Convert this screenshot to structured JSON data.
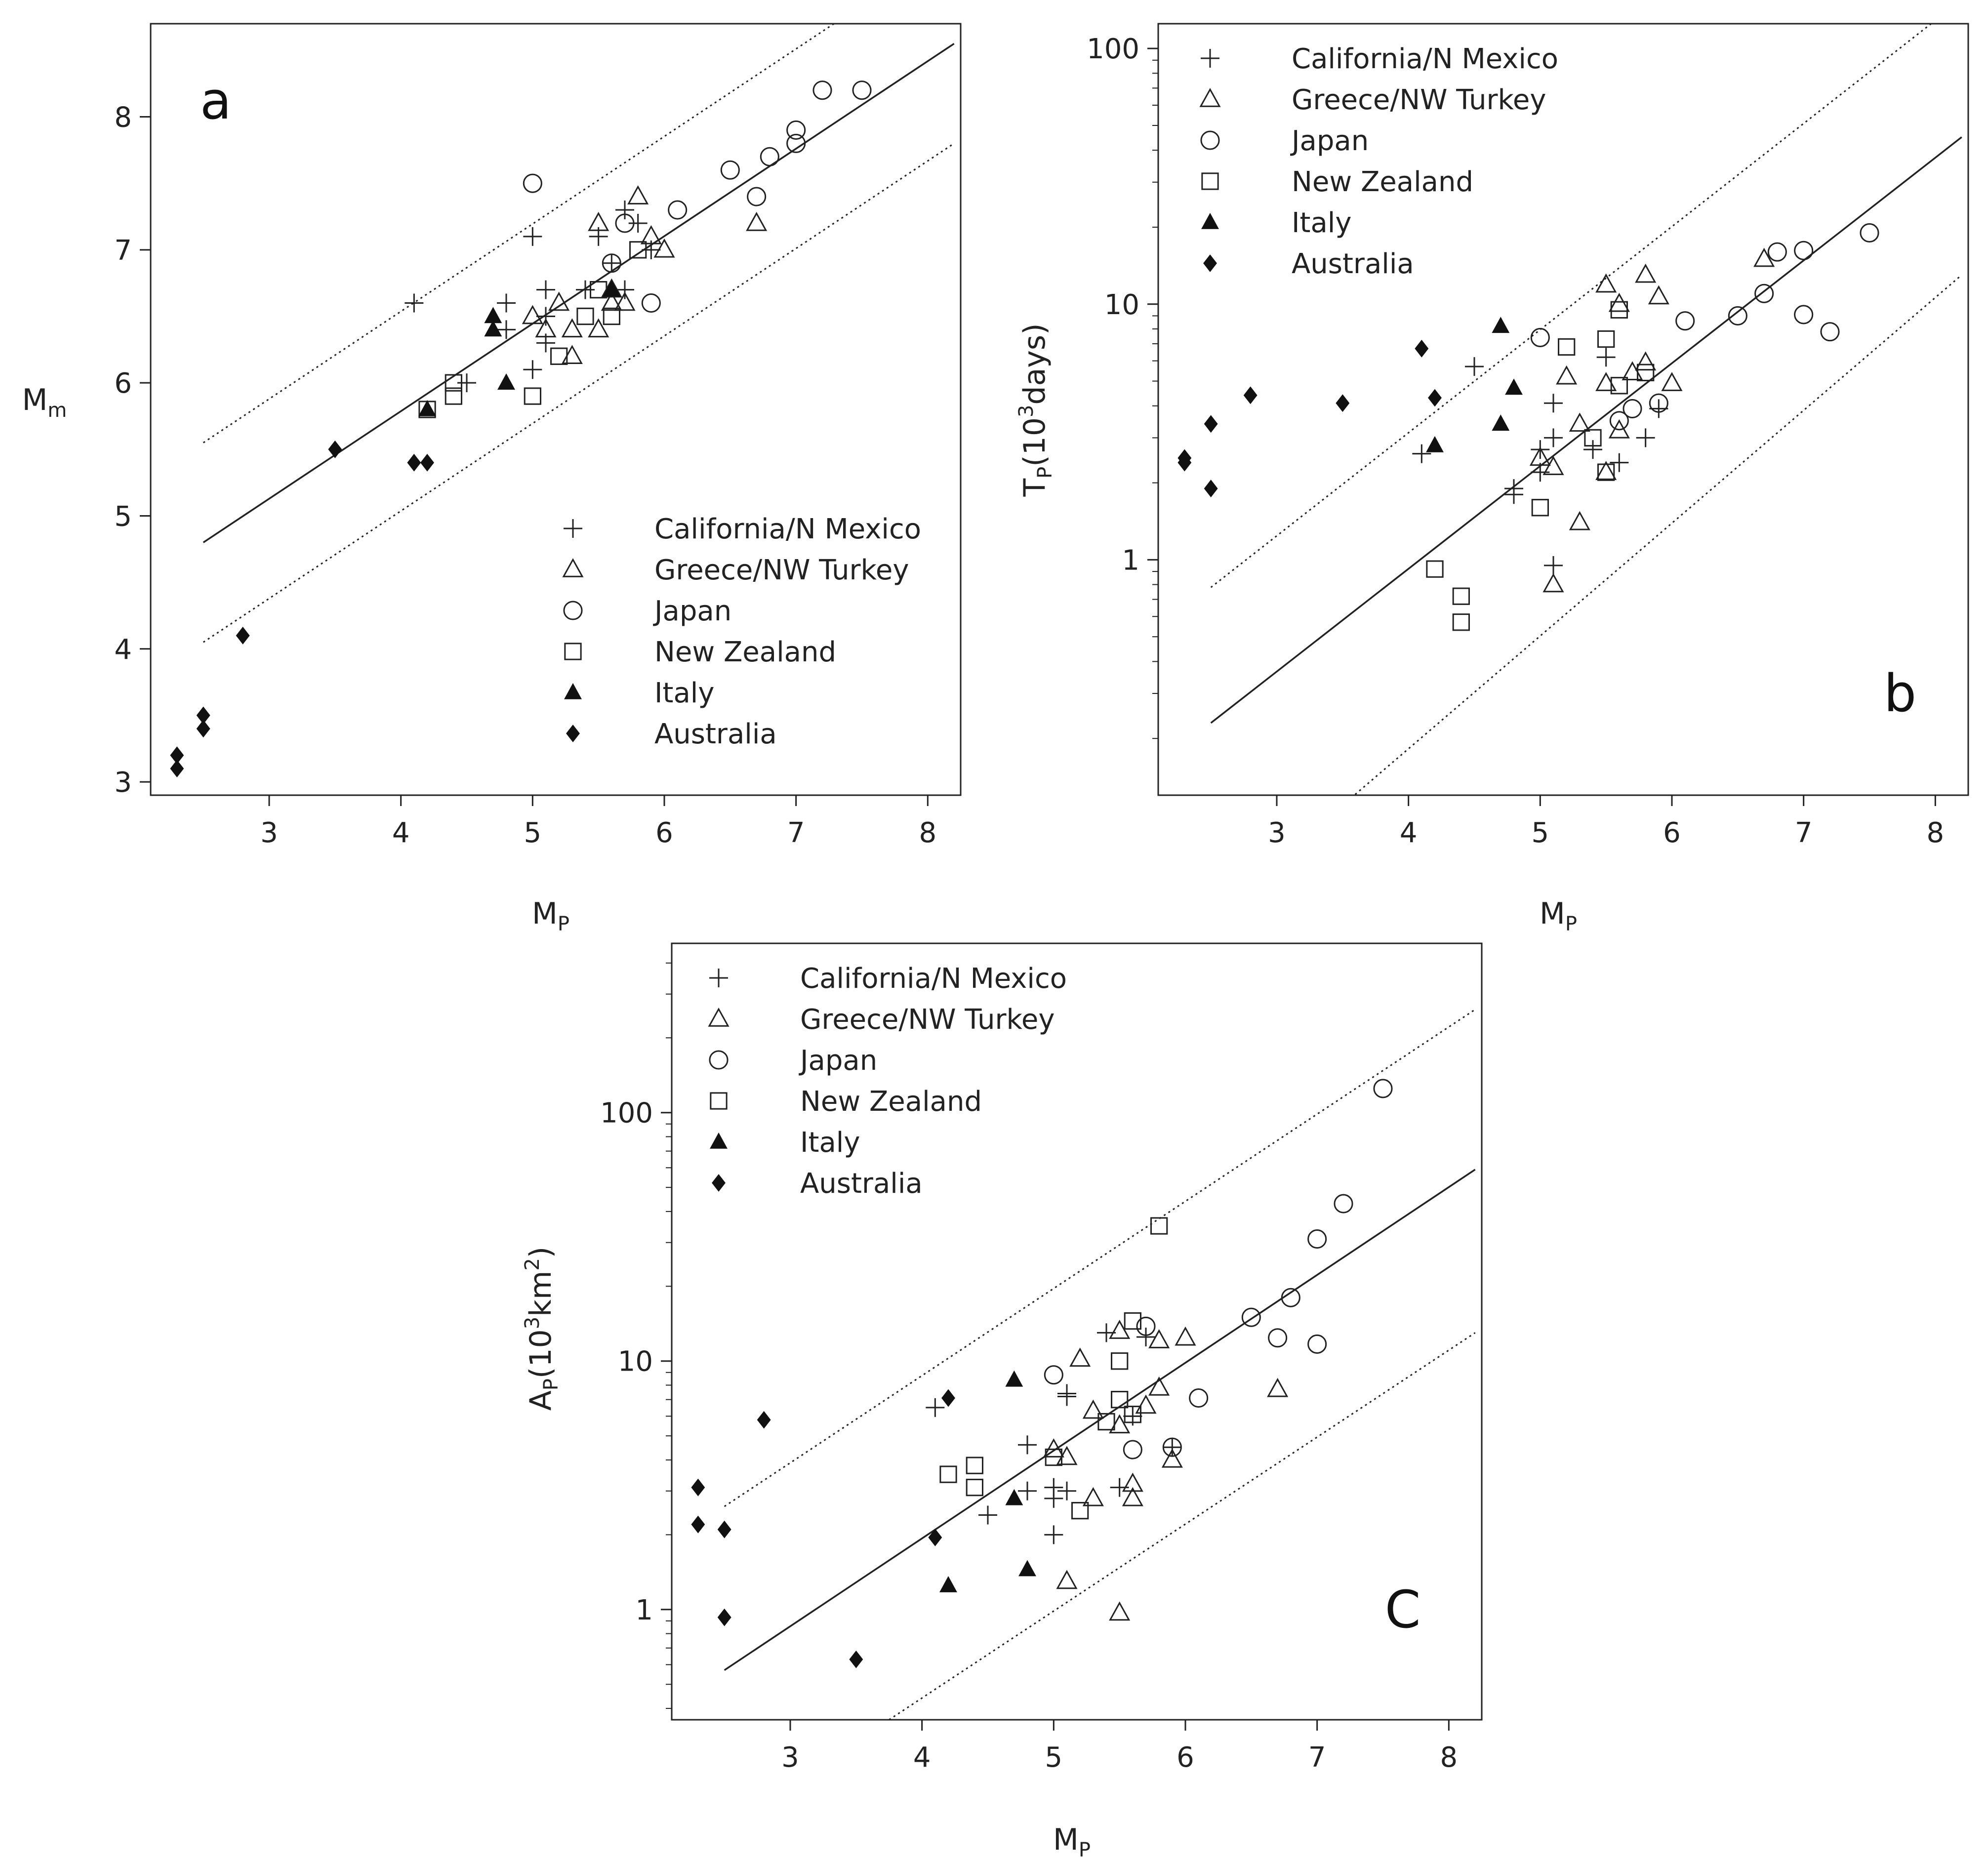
{
  "chart_data": [
    {
      "id": "a",
      "type": "scatter",
      "panel_label": "a",
      "xlabel": "M",
      "xlabel_sub": "P",
      "ylabel": "M",
      "ylabel_sub": "m",
      "yscale": "linear",
      "xlim": [
        2.1,
        8.25
      ],
      "ylim": [
        2.9,
        8.7
      ],
      "xticks": [
        3,
        4,
        5,
        6,
        7,
        8
      ],
      "xtick_labels": [
        "3",
        "4",
        "5",
        "6",
        "7",
        "8"
      ],
      "yticks": [
        3,
        4,
        5,
        6,
        7,
        8
      ],
      "ytick_labels": [
        "3",
        "4",
        "5",
        "6",
        "7",
        "8"
      ],
      "legend_position": "bottom-right",
      "fit_line": {
        "x": [
          2.5,
          8.2
        ],
        "y": [
          4.8,
          8.55
        ]
      },
      "bound_lines": [
        {
          "x": [
            2.5,
            8.2
          ],
          "y": [
            5.55,
            9.3
          ]
        },
        {
          "x": [
            2.5,
            8.2
          ],
          "y": [
            4.05,
            7.8
          ]
        }
      ],
      "series": [
        {
          "name": "California/N Mexico",
          "marker": "plus",
          "points": [
            [
              4.1,
              6.6
            ],
            [
              4.8,
              6.6
            ],
            [
              4.8,
              6.4
            ],
            [
              4.5,
              6.0
            ],
            [
              5.0,
              6.1
            ],
            [
              5.0,
              7.1
            ],
            [
              5.1,
              6.3
            ],
            [
              5.1,
              6.5
            ],
            [
              5.1,
              6.7
            ],
            [
              5.4,
              6.7
            ],
            [
              5.5,
              7.1
            ],
            [
              5.7,
              7.3
            ],
            [
              5.8,
              7.2
            ],
            [
              5.9,
              7.0
            ],
            [
              5.6,
              6.9
            ],
            [
              5.7,
              6.7
            ]
          ]
        },
        {
          "name": "Greece/NW Turkey",
          "marker": "triangle",
          "points": [
            [
              5.0,
              6.5
            ],
            [
              5.1,
              6.4
            ],
            [
              5.2,
              6.6
            ],
            [
              5.3,
              6.4
            ],
            [
              5.3,
              6.2
            ],
            [
              5.5,
              6.4
            ],
            [
              5.5,
              7.2
            ],
            [
              5.6,
              6.7
            ],
            [
              5.6,
              6.6
            ],
            [
              5.7,
              6.6
            ],
            [
              5.8,
              7.4
            ],
            [
              5.9,
              7.1
            ],
            [
              6.0,
              7.0
            ],
            [
              6.7,
              7.2
            ]
          ]
        },
        {
          "name": "Japan",
          "marker": "circle",
          "points": [
            [
              5.0,
              7.5
            ],
            [
              5.6,
              6.9
            ],
            [
              5.7,
              7.2
            ],
            [
              5.9,
              6.6
            ],
            [
              6.1,
              7.3
            ],
            [
              6.5,
              7.6
            ],
            [
              6.7,
              7.4
            ],
            [
              6.8,
              7.7
            ],
            [
              7.0,
              7.9
            ],
            [
              7.0,
              7.8
            ],
            [
              7.2,
              8.2
            ],
            [
              7.5,
              8.2
            ]
          ]
        },
        {
          "name": "New Zealand",
          "marker": "square",
          "points": [
            [
              4.2,
              5.8
            ],
            [
              4.4,
              5.9
            ],
            [
              4.4,
              6.0
            ],
            [
              5.0,
              5.9
            ],
            [
              5.2,
              6.2
            ],
            [
              5.4,
              6.5
            ],
            [
              5.5,
              6.7
            ],
            [
              5.6,
              6.5
            ],
            [
              5.8,
              7.0
            ]
          ]
        },
        {
          "name": "Italy",
          "marker": "filled-triangle",
          "points": [
            [
              4.2,
              5.8
            ],
            [
              4.7,
              6.5
            ],
            [
              4.7,
              6.4
            ],
            [
              4.8,
              6.0
            ],
            [
              5.6,
              6.7
            ]
          ]
        },
        {
          "name": "Australia",
          "marker": "filled-diamond",
          "points": [
            [
              2.3,
              3.1
            ],
            [
              2.3,
              3.2
            ],
            [
              2.5,
              3.4
            ],
            [
              2.5,
              3.5
            ],
            [
              2.8,
              4.1
            ],
            [
              3.5,
              5.5
            ],
            [
              4.1,
              5.4
            ],
            [
              4.2,
              5.4
            ]
          ]
        }
      ]
    },
    {
      "id": "b",
      "type": "scatter",
      "panel_label": "b",
      "xlabel": "M",
      "xlabel_sub": "P",
      "ylabel": "T",
      "ylabel_sub": "P",
      "ylabel_rest": "(10",
      "ylabel_sup": "3",
      "ylabel_tail": "days)",
      "yscale": "log",
      "xlim": [
        2.1,
        8.25
      ],
      "ylim": [
        0.12,
        125
      ],
      "xticks": [
        3,
        4,
        5,
        6,
        7,
        8
      ],
      "xtick_labels": [
        "3",
        "4",
        "5",
        "6",
        "7",
        "8"
      ],
      "yticks": [
        1,
        10,
        100
      ],
      "ytick_labels": [
        "1",
        "10",
        "100"
      ],
      "legend_position": "top-left",
      "fit_line": {
        "x": [
          2.5,
          8.2
        ],
        "y": [
          0.23,
          45
        ]
      },
      "bound_lines": [
        {
          "x": [
            2.5,
            8.2
          ],
          "y": [
            0.78,
            155
          ]
        },
        {
          "x": [
            3.0,
            8.2
          ],
          "y": [
            0.066,
            13
          ]
        }
      ],
      "series": [
        {
          "name": "California/N Mexico",
          "marker": "plus",
          "points": [
            [
              4.1,
              2.6
            ],
            [
              4.5,
              5.7
            ],
            [
              4.8,
              1.8
            ],
            [
              4.8,
              1.9
            ],
            [
              5.0,
              2.2
            ],
            [
              5.0,
              2.7
            ],
            [
              5.1,
              3.0
            ],
            [
              5.1,
              4.1
            ],
            [
              5.1,
              0.95
            ],
            [
              5.4,
              2.7
            ],
            [
              5.5,
              6.2
            ],
            [
              5.6,
              2.4
            ],
            [
              5.8,
              3.0
            ],
            [
              5.9,
              3.9
            ]
          ]
        },
        {
          "name": "Greece/NW Turkey",
          "marker": "triangle",
          "points": [
            [
              5.0,
              2.5
            ],
            [
              5.1,
              2.3
            ],
            [
              5.1,
              0.8
            ],
            [
              5.2,
              5.2
            ],
            [
              5.3,
              3.4
            ],
            [
              5.3,
              1.4
            ],
            [
              5.5,
              11.9
            ],
            [
              5.5,
              4.9
            ],
            [
              5.5,
              2.2
            ],
            [
              5.6,
              3.2
            ],
            [
              5.6,
              10.0
            ],
            [
              5.7,
              5.4
            ],
            [
              5.8,
              5.9
            ],
            [
              5.8,
              13.0
            ],
            [
              5.9,
              10.7
            ],
            [
              6.0,
              4.9
            ],
            [
              6.7,
              15.0
            ]
          ]
        },
        {
          "name": "Japan",
          "marker": "circle",
          "points": [
            [
              5.0,
              7.4
            ],
            [
              5.6,
              3.5
            ],
            [
              5.7,
              3.9
            ],
            [
              5.9,
              4.1
            ],
            [
              6.1,
              8.6
            ],
            [
              6.5,
              9.0
            ],
            [
              6.7,
              11.0
            ],
            [
              6.8,
              16.0
            ],
            [
              7.0,
              16.2
            ],
            [
              7.0,
              9.1
            ],
            [
              7.2,
              7.8
            ],
            [
              7.5,
              19.0
            ]
          ]
        },
        {
          "name": "New Zealand",
          "marker": "square",
          "points": [
            [
              4.2,
              0.92
            ],
            [
              4.4,
              0.72
            ],
            [
              4.4,
              0.57
            ],
            [
              5.0,
              1.6
            ],
            [
              5.2,
              6.8
            ],
            [
              5.4,
              3.0
            ],
            [
              5.5,
              7.3
            ],
            [
              5.5,
              2.2
            ],
            [
              5.6,
              9.5
            ],
            [
              5.6,
              4.8
            ],
            [
              5.8,
              5.4
            ]
          ]
        },
        {
          "name": "Italy",
          "marker": "filled-triangle",
          "points": [
            [
              4.2,
              2.8
            ],
            [
              4.7,
              8.2
            ],
            [
              4.7,
              3.4
            ],
            [
              4.8,
              4.7
            ]
          ]
        },
        {
          "name": "Australia",
          "marker": "filled-diamond",
          "points": [
            [
              2.3,
              2.4
            ],
            [
              2.3,
              2.5
            ],
            [
              2.5,
              3.4
            ],
            [
              2.5,
              1.9
            ],
            [
              2.8,
              4.4
            ],
            [
              3.5,
              4.1
            ],
            [
              4.1,
              6.7
            ],
            [
              4.2,
              4.3
            ]
          ]
        }
      ]
    },
    {
      "id": "c",
      "type": "scatter",
      "panel_label": "C",
      "xlabel": "M",
      "xlabel_sub": "P",
      "ylabel": "A",
      "ylabel_sub": "P",
      "ylabel_rest": "(10",
      "ylabel_sup": "3",
      "ylabel_tail": "km",
      "ylabel_sup2": "2",
      "ylabel_end": ")",
      "yscale": "log",
      "xlim": [
        2.1,
        8.25
      ],
      "ylim": [
        0.36,
        480
      ],
      "xticks": [
        3,
        4,
        5,
        6,
        7,
        8
      ],
      "xtick_labels": [
        "3",
        "4",
        "5",
        "6",
        "7",
        "8"
      ],
      "yticks": [
        1,
        10,
        100
      ],
      "ytick_labels": [
        "1",
        "10",
        "100"
      ],
      "legend_position": "top-left",
      "fit_line": {
        "x": [
          2.5,
          8.2
        ],
        "y": [
          0.57,
          59
        ]
      },
      "bound_lines": [
        {
          "x": [
            2.5,
            8.2
          ],
          "y": [
            2.6,
            260
          ]
        },
        {
          "x": [
            3.75,
            8.2
          ],
          "y": [
            0.36,
            13
          ]
        }
      ],
      "series": [
        {
          "name": "California/N Mexico",
          "marker": "plus",
          "points": [
            [
              4.1,
              6.5
            ],
            [
              4.5,
              2.4
            ],
            [
              4.8,
              4.6
            ],
            [
              4.8,
              3.0
            ],
            [
              5.0,
              3.1
            ],
            [
              5.0,
              2.8
            ],
            [
              5.0,
              2.0
            ],
            [
              5.1,
              7.4
            ],
            [
              5.1,
              7.2
            ],
            [
              5.1,
              3.0
            ],
            [
              5.4,
              13.0
            ],
            [
              5.5,
              3.1
            ],
            [
              5.6,
              6.0
            ],
            [
              5.7,
              12.5
            ],
            [
              5.9,
              4.5
            ]
          ]
        },
        {
          "name": "Greece/NW Turkey",
          "marker": "triangle",
          "points": [
            [
              5.0,
              4.4
            ],
            [
              5.1,
              4.1
            ],
            [
              5.1,
              1.3
            ],
            [
              5.2,
              10.2
            ],
            [
              5.3,
              6.3
            ],
            [
              5.3,
              2.8
            ],
            [
              5.5,
              13.2
            ],
            [
              5.5,
              5.5
            ],
            [
              5.5,
              0.97
            ],
            [
              5.6,
              3.2
            ],
            [
              5.6,
              2.8
            ],
            [
              5.7,
              6.6
            ],
            [
              5.8,
              12.1
            ],
            [
              5.8,
              7.8
            ],
            [
              5.9,
              4.0
            ],
            [
              6.0,
              12.4
            ],
            [
              6.7,
              7.7
            ]
          ]
        },
        {
          "name": "Japan",
          "marker": "circle",
          "points": [
            [
              5.0,
              8.8
            ],
            [
              5.6,
              4.4
            ],
            [
              5.7,
              13.8
            ],
            [
              5.9,
              4.5
            ],
            [
              6.1,
              7.1
            ],
            [
              6.5,
              15.0
            ],
            [
              6.7,
              12.4
            ],
            [
              6.8,
              18.0
            ],
            [
              7.0,
              31.0
            ],
            [
              7.0,
              11.7
            ],
            [
              7.2,
              43.0
            ],
            [
              7.5,
              125.0
            ]
          ]
        },
        {
          "name": "New Zealand",
          "marker": "square",
          "points": [
            [
              4.2,
              3.5
            ],
            [
              4.4,
              3.8
            ],
            [
              4.4,
              3.1
            ],
            [
              5.0,
              4.1
            ],
            [
              5.2,
              2.5
            ],
            [
              5.4,
              5.7
            ],
            [
              5.5,
              10.0
            ],
            [
              5.5,
              7.0
            ],
            [
              5.6,
              14.5
            ],
            [
              5.6,
              6.1
            ],
            [
              5.8,
              35.0
            ]
          ]
        },
        {
          "name": "Italy",
          "marker": "filled-triangle",
          "points": [
            [
              4.2,
              1.25
            ],
            [
              4.7,
              8.4
            ],
            [
              4.7,
              2.8
            ],
            [
              4.8,
              1.45
            ]
          ]
        },
        {
          "name": "Australia",
          "marker": "filled-diamond",
          "points": [
            [
              2.3,
              3.1
            ],
            [
              2.3,
              2.2
            ],
            [
              2.5,
              2.1
            ],
            [
              2.5,
              0.93
            ],
            [
              2.8,
              5.8
            ],
            [
              3.5,
              0.63
            ],
            [
              4.1,
              1.95
            ],
            [
              4.2,
              7.1
            ]
          ]
        }
      ]
    }
  ]
}
